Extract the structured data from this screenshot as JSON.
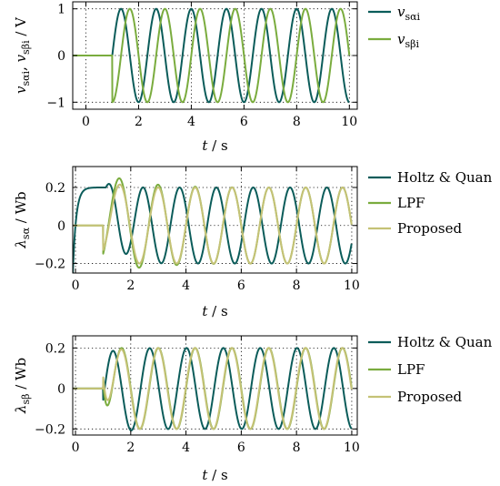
{
  "colors": {
    "dark_teal": "#0b5c5a",
    "mid_green": "#7aac3e",
    "khaki": "#c5c276"
  },
  "chart_data": [
    {
      "type": "line",
      "xlabel_var": "t",
      "xlabel_sep": " / ",
      "xlabel_unit": "s",
      "ylabel_html": "<tspan font-style='italic'>v</tspan><tspan font-size='11' dy='4'>sαi</tspan><tspan dy='-4'>, </tspan><tspan font-style='italic'>v</tspan><tspan font-size='11' dy='4'>sβi</tspan><tspan dy='-4'> / V</tspan>",
      "xlim": [
        -0.5,
        10.3
      ],
      "ylim": [
        -1.15,
        1.15
      ],
      "xticks": [
        0,
        2,
        4,
        6,
        8,
        10
      ],
      "xtick_labels": [
        "0",
        "2",
        "4",
        "6",
        "8",
        "10"
      ],
      "yticks": [
        -1,
        0,
        1
      ],
      "ytick_labels": [
        "−1",
        "0",
        "1"
      ],
      "grid": true,
      "legend_position": "right",
      "series": [
        {
          "legend_html": "<tspan font-style='italic'>v</tspan><tspan font-size='11' dy='4'>sαi</tspan>",
          "color": "#0b5c5a",
          "model": "sin",
          "start": 1.0,
          "amp": 1.0,
          "freq": 0.75,
          "phase": 0
        },
        {
          "legend_html": "<tspan font-style='italic'>v</tspan><tspan font-size='11' dy='4'>sβi</tspan>",
          "color": "#7aac3e",
          "model": "sin",
          "start": 1.0,
          "amp": 1.0,
          "freq": 0.75,
          "phase": -1.5708
        }
      ]
    },
    {
      "type": "line",
      "xlabel_var": "t",
      "xlabel_sep": " / ",
      "xlabel_unit": "s",
      "ylabel_html": "<tspan font-style='italic'>λ</tspan><tspan font-size='11' dy='4'>sα</tspan><tspan dy='-4'> / Wb</tspan>",
      "xlim": [
        -0.1,
        10.2
      ],
      "ylim": [
        -0.25,
        0.31
      ],
      "xticks": [
        0,
        2,
        4,
        6,
        8,
        10
      ],
      "xtick_labels": [
        "0",
        "2",
        "4",
        "6",
        "8",
        "10"
      ],
      "yticks": [
        -0.2,
        0,
        0.2
      ],
      "ytick_labels": [
        "−0.2",
        "0",
        "0.2"
      ],
      "grid": true,
      "legend_position": "right",
      "series": [
        {
          "name": "Holtz & Quan",
          "color": "#0b5c5a",
          "model": "holtz_alpha"
        },
        {
          "name": "LPF",
          "color": "#7aac3e",
          "model": "lpf_alpha"
        },
        {
          "name": "Proposed",
          "color": "#c5c276",
          "model": "prop_alpha"
        }
      ]
    },
    {
      "type": "line",
      "xlabel_var": "t",
      "xlabel_sep": " / ",
      "xlabel_unit": "s",
      "ylabel_html": "<tspan font-style='italic'>λ</tspan><tspan font-size='11' dy='4'>sβ</tspan><tspan dy='-4'> / Wb</tspan>",
      "xlim": [
        -0.1,
        10.2
      ],
      "ylim": [
        -0.23,
        0.26
      ],
      "xticks": [
        0,
        2,
        4,
        6,
        8,
        10
      ],
      "xtick_labels": [
        "0",
        "2",
        "4",
        "6",
        "8",
        "10"
      ],
      "yticks": [
        -0.2,
        0,
        0.2
      ],
      "ytick_labels": [
        "−0.2",
        "0",
        "0.2"
      ],
      "grid": true,
      "legend_position": "right",
      "series": [
        {
          "name": "Holtz & Quan",
          "color": "#0b5c5a",
          "model": "holtz_beta"
        },
        {
          "name": "LPF",
          "color": "#7aac3e",
          "model": "lpf_beta"
        },
        {
          "name": "Proposed",
          "color": "#c5c276",
          "model": "prop_beta"
        }
      ]
    }
  ]
}
